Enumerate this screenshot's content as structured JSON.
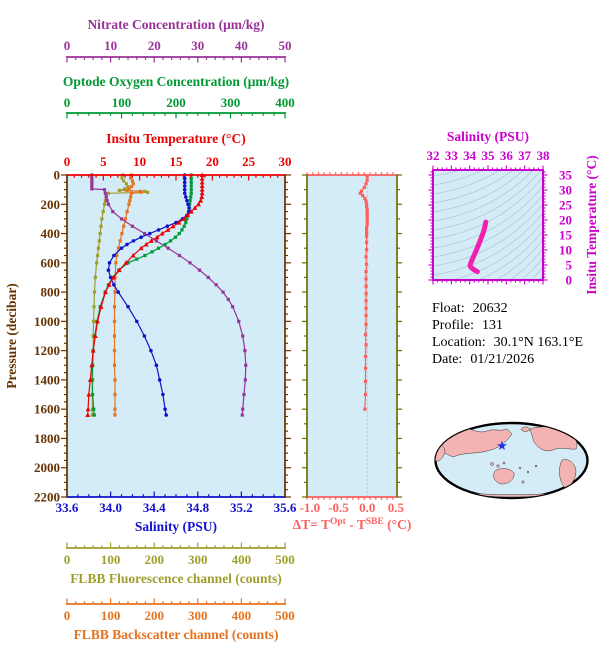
{
  "info": {
    "float_label": "Float:",
    "float_value": "20632",
    "profile_label": "Profile:",
    "profile_value": "131",
    "location_label": "Location:",
    "location_value": "30.1°N  163.1°E",
    "date_label": "Date:",
    "date_value": "01/21/2026"
  },
  "colors": {
    "nitrate": "#993399",
    "oxygen": "#009933",
    "temperature": "#ee0000",
    "pressure": "#663300",
    "salinity": "#1111cc",
    "fluorescence": "#9f9f2e",
    "backscatter": "#e5731f",
    "delta": "#ff5f5f",
    "delta_side": "#6e6e00",
    "ts_magenta": "#cc00cc",
    "ts_curve": "#f020b0",
    "plot_bg": "#d4ecf7",
    "map_land": "#f4b3b3",
    "map_ocean": "#d4ecf7",
    "map_star": "#2233ee",
    "contour": "#8fa5b5",
    "zero_line": "#bbbbbb"
  },
  "chart_data": {
    "type": "line",
    "pressure_axis": {
      "title": "Pressure (decibar)",
      "min": 0,
      "max": 2200,
      "ticks": [
        0,
        200,
        400,
        600,
        800,
        1000,
        1200,
        1400,
        1600,
        1800,
        2000,
        2200
      ],
      "minor": 50
    },
    "axes": {
      "nitrate": {
        "title": "Nitrate Concentration (μm/kg)",
        "min": 0,
        "max": 50,
        "ticks": [
          0,
          10,
          20,
          30,
          40,
          50
        ],
        "minor": 2
      },
      "oxygen": {
        "title": "Optode Oxygen Concentration (μm/kg)",
        "min": 0,
        "max": 400,
        "ticks": [
          0,
          100,
          200,
          300,
          400
        ],
        "minor": 20
      },
      "temperature": {
        "title": "Insitu Temperature (°C)",
        "min": 0,
        "max": 30,
        "ticks": [
          0,
          5,
          10,
          15,
          20,
          25,
          30
        ],
        "minor": 1
      },
      "salinity": {
        "title": "Salinity (PSU)",
        "min": 33.6,
        "max": 35.6,
        "ticks": [
          "33.6",
          "34.0",
          "34.4",
          "34.8",
          "35.2",
          "35.6"
        ],
        "minor": 0.1
      },
      "fluorescence": {
        "title": "FLBB Fluorescence channel (counts)",
        "min": 0,
        "max": 500,
        "ticks": [
          0,
          100,
          200,
          300,
          400,
          500
        ],
        "minor": 20
      },
      "backscatter": {
        "title": "FLBB Backscatter channel (counts)",
        "min": 0,
        "max": 500,
        "ticks": [
          0,
          100,
          200,
          300,
          400,
          500
        ],
        "minor": 20
      }
    },
    "series": [
      {
        "id": "fluorescence",
        "axis": "fluorescence",
        "marker": "square",
        "points": [
          [
            0,
            128
          ],
          [
            20,
            126
          ],
          [
            40,
            130
          ],
          [
            60,
            136
          ],
          [
            80,
            140
          ],
          [
            95,
            132
          ],
          [
            105,
            120
          ],
          [
            112,
            178
          ],
          [
            118,
            185
          ],
          [
            125,
            95
          ],
          [
            150,
            90
          ],
          [
            175,
            88
          ],
          [
            200,
            86
          ],
          [
            250,
            83
          ],
          [
            300,
            80
          ],
          [
            350,
            78
          ],
          [
            400,
            76
          ],
          [
            450,
            74
          ],
          [
            500,
            72
          ],
          [
            550,
            70
          ],
          [
            600,
            68
          ],
          [
            700,
            65
          ],
          [
            800,
            63
          ],
          [
            900,
            62
          ],
          [
            1000,
            61
          ],
          [
            1100,
            60
          ],
          [
            1200,
            60
          ],
          [
            1300,
            59
          ],
          [
            1400,
            59
          ],
          [
            1500,
            58
          ],
          [
            1600,
            58
          ],
          [
            1640,
            58
          ]
        ]
      },
      {
        "id": "backscatter",
        "axis": "backscatter",
        "marker": "square",
        "points": [
          [
            0,
            148
          ],
          [
            20,
            146
          ],
          [
            40,
            150
          ],
          [
            60,
            152
          ],
          [
            80,
            148
          ],
          [
            95,
            142
          ],
          [
            105,
            138
          ],
          [
            112,
            168
          ],
          [
            118,
            170
          ],
          [
            125,
            148
          ],
          [
            150,
            146
          ],
          [
            175,
            144
          ],
          [
            200,
            142
          ],
          [
            250,
            138
          ],
          [
            300,
            134
          ],
          [
            350,
            130
          ],
          [
            400,
            126
          ],
          [
            450,
            122
          ],
          [
            500,
            118
          ],
          [
            550,
            114
          ],
          [
            600,
            112
          ],
          [
            700,
            110
          ],
          [
            800,
            110
          ],
          [
            900,
            109
          ],
          [
            1000,
            109
          ],
          [
            1100,
            109
          ],
          [
            1200,
            109
          ],
          [
            1300,
            109
          ],
          [
            1400,
            110
          ],
          [
            1500,
            110
          ],
          [
            1600,
            110
          ],
          [
            1640,
            110
          ]
        ]
      },
      {
        "id": "nitrate",
        "axis": "nitrate",
        "marker": "square",
        "points": [
          [
            0,
            5.7
          ],
          [
            20,
            5.7
          ],
          [
            40,
            5.7
          ],
          [
            60,
            5.7
          ],
          [
            80,
            5.7
          ],
          [
            95,
            5.7
          ],
          [
            100,
            8.6
          ],
          [
            125,
            8.8
          ],
          [
            150,
            9.0
          ],
          [
            175,
            9.2
          ],
          [
            200,
            9.5
          ],
          [
            250,
            10.5
          ],
          [
            300,
            12.5
          ],
          [
            350,
            15.0
          ],
          [
            400,
            17.8
          ],
          [
            450,
            20.5
          ],
          [
            500,
            23.2
          ],
          [
            550,
            25.8
          ],
          [
            600,
            28.2
          ],
          [
            650,
            30.4
          ],
          [
            700,
            32.4
          ],
          [
            750,
            34.2
          ],
          [
            800,
            35.8
          ],
          [
            850,
            37.0
          ],
          [
            900,
            38.0
          ],
          [
            1000,
            39.4
          ],
          [
            1100,
            40.3
          ],
          [
            1200,
            40.8
          ],
          [
            1300,
            41.0
          ],
          [
            1400,
            40.9
          ],
          [
            1500,
            40.6
          ],
          [
            1600,
            40.3
          ],
          [
            1640,
            40.2
          ]
        ]
      },
      {
        "id": "oxygen",
        "axis": "oxygen",
        "marker": "square",
        "points": [
          [
            0,
            228
          ],
          [
            25,
            228
          ],
          [
            50,
            228
          ],
          [
            75,
            228
          ],
          [
            100,
            228
          ],
          [
            125,
            228
          ],
          [
            150,
            227
          ],
          [
            175,
            226
          ],
          [
            200,
            225
          ],
          [
            225,
            224
          ],
          [
            250,
            223
          ],
          [
            275,
            222
          ],
          [
            300,
            220
          ],
          [
            325,
            218
          ],
          [
            350,
            215
          ],
          [
            375,
            211
          ],
          [
            400,
            206
          ],
          [
            425,
            199
          ],
          [
            450,
            190
          ],
          [
            475,
            180
          ],
          [
            500,
            168
          ],
          [
            525,
            156
          ],
          [
            550,
            143
          ],
          [
            575,
            128
          ],
          [
            600,
            112
          ],
          [
            650,
            95
          ],
          [
            700,
            84
          ],
          [
            750,
            76
          ],
          [
            800,
            70
          ],
          [
            900,
            61
          ],
          [
            1000,
            55
          ],
          [
            1100,
            51
          ],
          [
            1200,
            48
          ],
          [
            1300,
            47
          ],
          [
            1400,
            46
          ],
          [
            1500,
            47
          ],
          [
            1600,
            49
          ],
          [
            1640,
            50
          ]
        ]
      },
      {
        "id": "salinity",
        "axis": "salinity",
        "marker": "circle",
        "points": [
          [
            0,
            34.68
          ],
          [
            25,
            34.68
          ],
          [
            50,
            34.68
          ],
          [
            75,
            34.68
          ],
          [
            100,
            34.68
          ],
          [
            125,
            34.68
          ],
          [
            150,
            34.69
          ],
          [
            175,
            34.7
          ],
          [
            200,
            34.71
          ],
          [
            225,
            34.72
          ],
          [
            250,
            34.72
          ],
          [
            275,
            34.7
          ],
          [
            300,
            34.66
          ],
          [
            325,
            34.6
          ],
          [
            350,
            34.52
          ],
          [
            375,
            34.44
          ],
          [
            400,
            34.36
          ],
          [
            425,
            34.28
          ],
          [
            450,
            34.21
          ],
          [
            475,
            34.15
          ],
          [
            500,
            34.1
          ],
          [
            550,
            34.03
          ],
          [
            600,
            33.99
          ],
          [
            650,
            33.98
          ],
          [
            700,
            34.0
          ],
          [
            750,
            34.03
          ],
          [
            800,
            34.07
          ],
          [
            900,
            34.16
          ],
          [
            1000,
            34.24
          ],
          [
            1100,
            34.31
          ],
          [
            1200,
            34.37
          ],
          [
            1300,
            34.42
          ],
          [
            1400,
            34.45
          ],
          [
            1500,
            34.48
          ],
          [
            1600,
            34.5
          ],
          [
            1640,
            34.51
          ]
        ]
      },
      {
        "id": "temperature",
        "axis": "temperature",
        "marker": "triangle",
        "points": [
          [
            0,
            18.6
          ],
          [
            25,
            18.6
          ],
          [
            50,
            18.6
          ],
          [
            75,
            18.6
          ],
          [
            100,
            18.6
          ],
          [
            125,
            18.6
          ],
          [
            150,
            18.55
          ],
          [
            175,
            18.4
          ],
          [
            200,
            18.1
          ],
          [
            225,
            17.6
          ],
          [
            250,
            17.1
          ],
          [
            275,
            16.6
          ],
          [
            300,
            16.1
          ],
          [
            325,
            15.4
          ],
          [
            350,
            14.6
          ],
          [
            375,
            13.9
          ],
          [
            400,
            13.1
          ],
          [
            425,
            12.4
          ],
          [
            450,
            11.6
          ],
          [
            475,
            10.9
          ],
          [
            500,
            10.2
          ],
          [
            550,
            9.1
          ],
          [
            600,
            8.1
          ],
          [
            650,
            7.2
          ],
          [
            700,
            6.4
          ],
          [
            750,
            5.8
          ],
          [
            800,
            5.3
          ],
          [
            900,
            4.7
          ],
          [
            1000,
            4.2
          ],
          [
            1100,
            3.9
          ],
          [
            1200,
            3.6
          ],
          [
            1300,
            3.4
          ],
          [
            1400,
            3.2
          ],
          [
            1500,
            3.0
          ],
          [
            1600,
            2.9
          ],
          [
            1640,
            2.85
          ]
        ]
      }
    ],
    "delta_panel": {
      "label_parts": [
        "ΔT= T",
        "Opt",
        " - T",
        "SBE",
        " (°C)"
      ],
      "min": -1.05,
      "max": 0.52,
      "ticks": [
        "-1.0",
        "-0.5",
        "0.0",
        "0.5"
      ],
      "minor": 0.1,
      "points": [
        [
          10,
          0
        ],
        [
          35,
          0
        ],
        [
          60,
          -0.02
        ],
        [
          85,
          -0.05
        ],
        [
          110,
          -0.1
        ],
        [
          125,
          -0.12
        ],
        [
          140,
          -0.08
        ],
        [
          160,
          -0.04
        ],
        [
          180,
          -0.02
        ],
        [
          200,
          -0.01
        ],
        [
          220,
          -0.01
        ],
        [
          240,
          0
        ],
        [
          260,
          0
        ],
        [
          280,
          0
        ],
        [
          300,
          0
        ],
        [
          320,
          0
        ],
        [
          340,
          0
        ],
        [
          360,
          -0.01
        ],
        [
          380,
          -0.01
        ],
        [
          400,
          -0.01
        ],
        [
          420,
          -0.01
        ],
        [
          460,
          -0.01
        ],
        [
          510,
          -0.01
        ],
        [
          560,
          -0.02
        ],
        [
          610,
          -0.01
        ],
        [
          660,
          -0.02
        ],
        [
          710,
          -0.02
        ],
        [
          760,
          -0.02
        ],
        [
          810,
          -0.02
        ],
        [
          860,
          -0.02
        ],
        [
          910,
          -0.02
        ],
        [
          960,
          -0.02
        ],
        [
          1020,
          -0.02
        ],
        [
          1090,
          -0.03
        ],
        [
          1160,
          -0.02
        ],
        [
          1240,
          -0.03
        ],
        [
          1320,
          -0.03
        ],
        [
          1410,
          -0.03
        ],
        [
          1500,
          -0.03
        ],
        [
          1600,
          -0.04
        ]
      ]
    },
    "ts_panel": {
      "title": "Salinity (PSU)",
      "ylabel": "Insitu Temperature (°C)",
      "s_min": 32,
      "s_max": 38,
      "s_ticks": [
        32,
        33,
        34,
        35,
        36,
        37,
        38
      ],
      "s_minor": 0.25,
      "t_ticks": [
        0,
        5,
        10,
        15,
        20,
        25,
        30,
        35
      ],
      "t_minor": 1,
      "points": [
        [
          34.88,
          19.3
        ],
        [
          34.82,
          17.5
        ],
        [
          34.72,
          15.5
        ],
        [
          34.58,
          13.2
        ],
        [
          34.42,
          10.8
        ],
        [
          34.27,
          8.6
        ],
        [
          34.14,
          6.8
        ],
        [
          34.05,
          5.5
        ],
        [
          34.02,
          4.8
        ],
        [
          34.08,
          4.2
        ],
        [
          34.22,
          3.5
        ],
        [
          34.35,
          3.0
        ],
        [
          34.42,
          2.8
        ]
      ]
    }
  }
}
